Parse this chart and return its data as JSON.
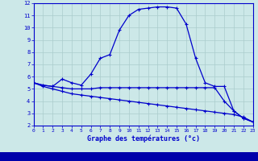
{
  "line1_x": [
    0,
    1,
    2,
    3,
    4,
    5,
    6,
    7,
    8,
    9,
    10,
    11,
    12,
    13,
    14,
    15,
    16,
    17,
    18,
    19,
    20,
    21,
    22,
    23
  ],
  "line1_y": [
    5.5,
    5.3,
    5.2,
    5.8,
    5.5,
    5.3,
    6.2,
    7.5,
    7.8,
    9.8,
    11.0,
    11.5,
    11.6,
    11.7,
    11.7,
    11.6,
    10.3,
    7.5,
    5.5,
    5.2,
    5.2,
    3.2,
    2.6,
    2.3
  ],
  "line2_x": [
    0,
    1,
    2,
    3,
    4,
    5,
    6,
    7,
    8,
    9,
    10,
    11,
    12,
    13,
    14,
    15,
    16,
    17,
    18,
    19,
    20,
    21,
    22,
    23
  ],
  "line2_y": [
    5.5,
    5.3,
    5.2,
    5.1,
    5.0,
    5.0,
    5.0,
    5.1,
    5.1,
    5.1,
    5.1,
    5.1,
    5.1,
    5.1,
    5.1,
    5.1,
    5.1,
    5.1,
    5.1,
    5.1,
    4.0,
    3.2,
    2.6,
    2.3
  ],
  "line3_x": [
    0,
    1,
    2,
    3,
    4,
    5,
    6,
    7,
    8,
    9,
    10,
    11,
    12,
    13,
    14,
    15,
    16,
    17,
    18,
    19,
    20,
    21,
    22,
    23
  ],
  "line3_y": [
    5.5,
    5.2,
    5.0,
    4.8,
    4.6,
    4.5,
    4.4,
    4.3,
    4.2,
    4.1,
    4.0,
    3.9,
    3.8,
    3.7,
    3.6,
    3.5,
    3.4,
    3.3,
    3.2,
    3.1,
    3.0,
    2.9,
    2.7,
    2.3
  ],
  "line_color": "#0000cc",
  "bg_color": "#cce8e8",
  "grid_color": "#aacccc",
  "xlabel": "Graphe des températures (°c)",
  "xlim": [
    0,
    23
  ],
  "ylim": [
    2,
    12
  ],
  "yticks": [
    2,
    3,
    4,
    5,
    6,
    7,
    8,
    9,
    10,
    11,
    12
  ],
  "xticks": [
    0,
    1,
    2,
    3,
    4,
    5,
    6,
    7,
    8,
    9,
    10,
    11,
    12,
    13,
    14,
    15,
    16,
    17,
    18,
    19,
    20,
    21,
    22,
    23
  ],
  "xaxis_bar_color": "#0000aa",
  "xaxis_bar_height": 0.12
}
